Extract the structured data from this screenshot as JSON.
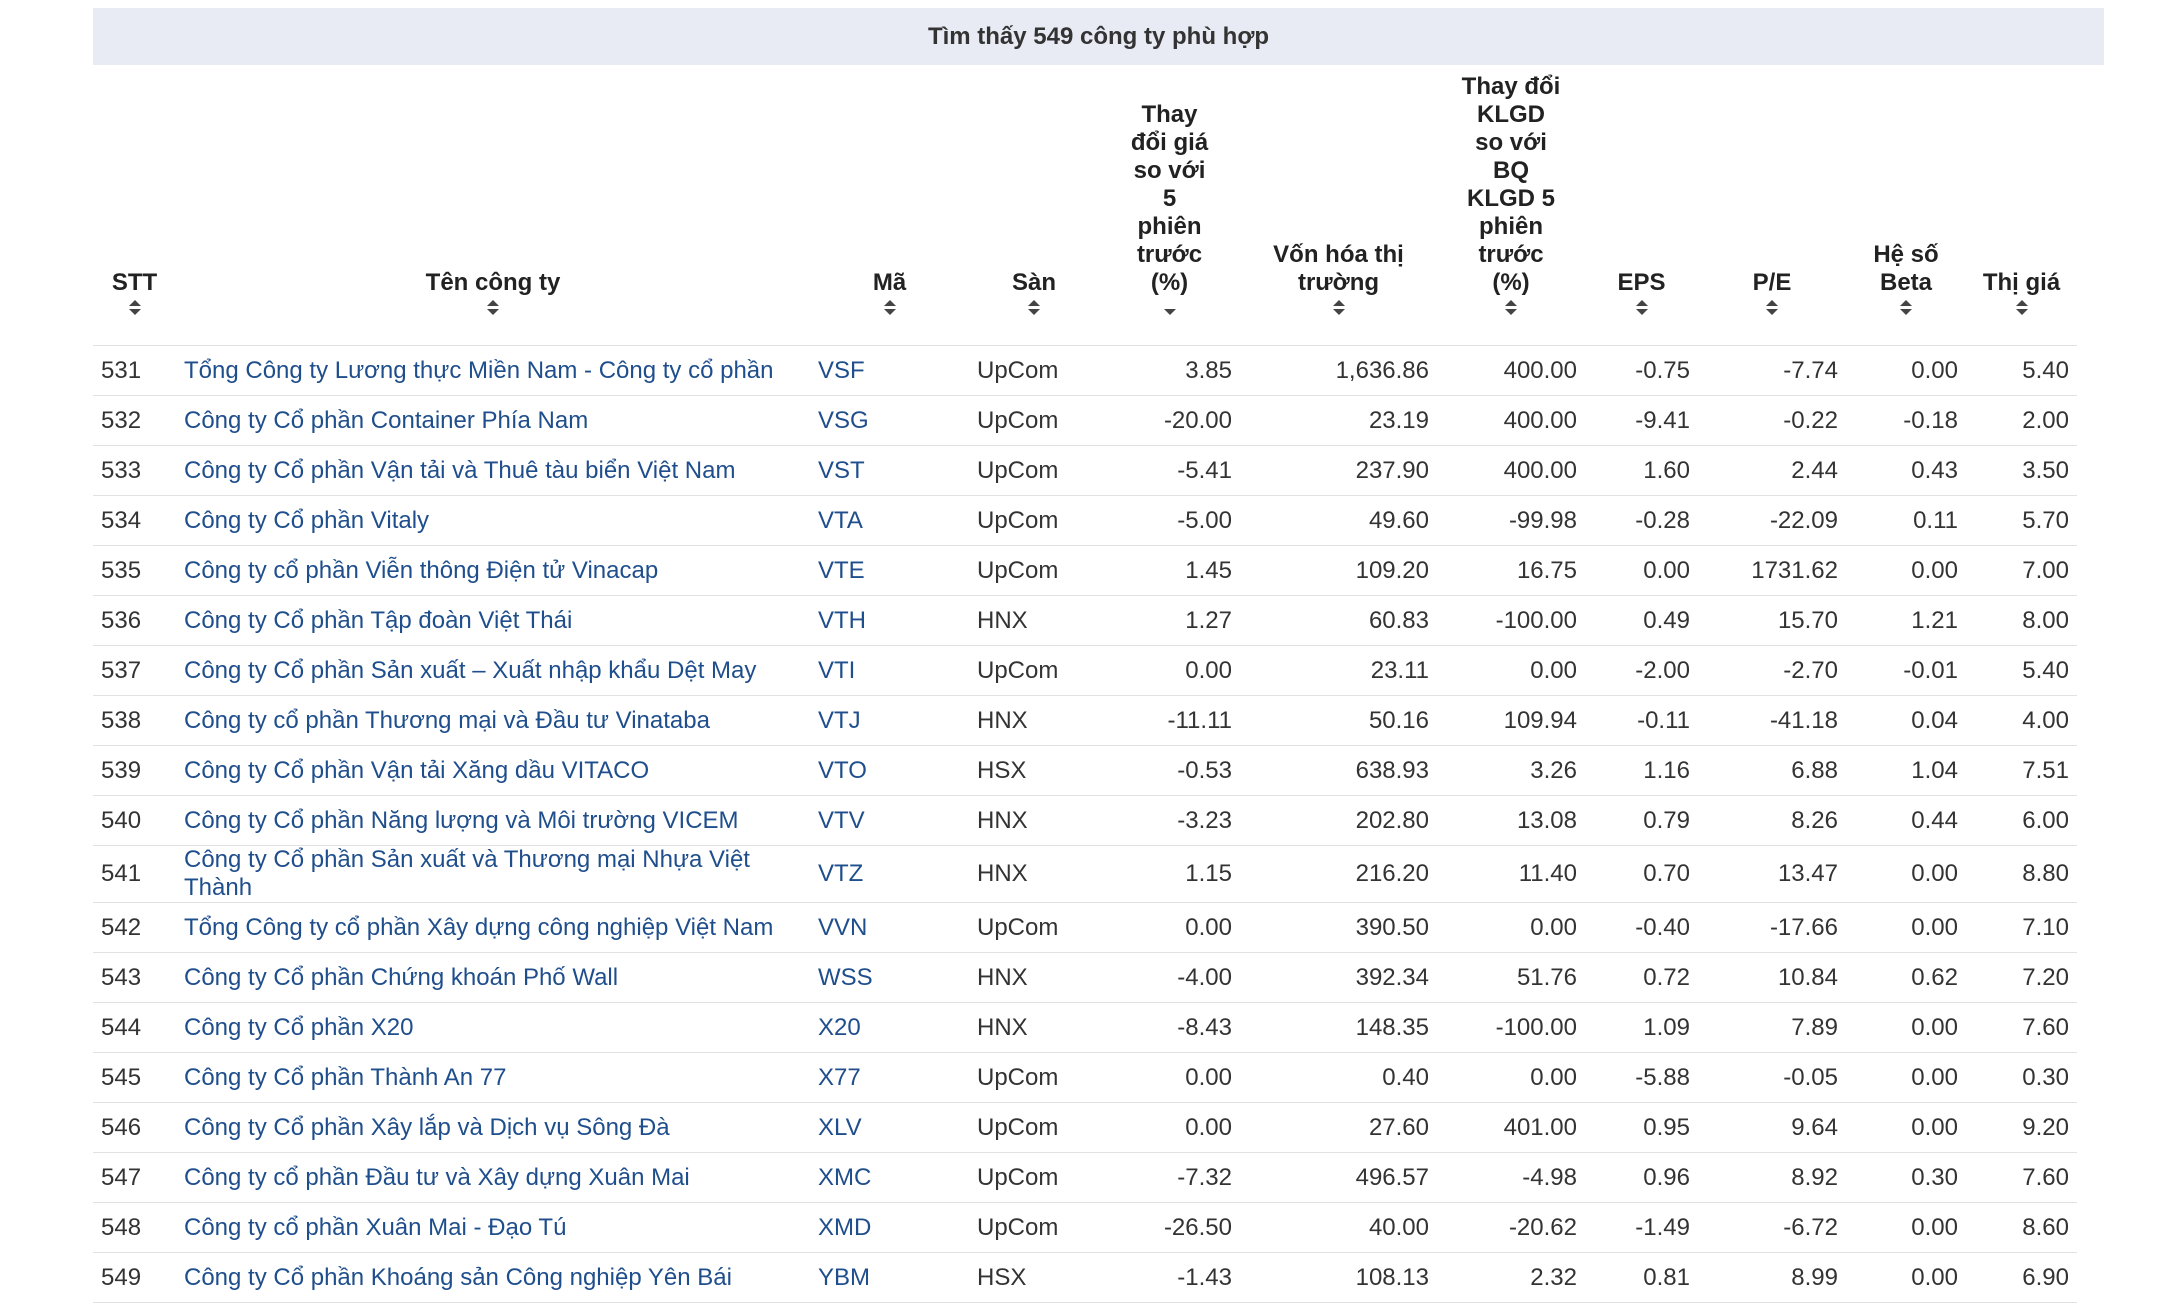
{
  "header": {
    "title": "Tìm thấy 549 công ty phù hợp"
  },
  "table": {
    "columns": [
      "STT",
      "Tên công ty",
      "Mã",
      "Sàn",
      "Thay đổi giá so với 5 phiên trước (%)",
      "Vốn hóa thị trường",
      "Thay đổi KLGD so với BQ KLGD 5 phiên trước (%)",
      "EPS",
      "P/E",
      "Hệ số Beta",
      "Thị giá"
    ],
    "rows": [
      [
        "531",
        "Tổng Công ty Lương thực Miền Nam - Công ty cổ phần",
        "VSF",
        "UpCom",
        "3.85",
        "1,636.86",
        "400.00",
        "-0.75",
        "-7.74",
        "0.00",
        "5.40"
      ],
      [
        "532",
        "Công ty Cổ phần Container Phía Nam",
        "VSG",
        "UpCom",
        "-20.00",
        "23.19",
        "400.00",
        "-9.41",
        "-0.22",
        "-0.18",
        "2.00"
      ],
      [
        "533",
        "Công ty Cổ phần Vận tải và Thuê tàu biển Việt Nam",
        "VST",
        "UpCom",
        "-5.41",
        "237.90",
        "400.00",
        "1.60",
        "2.44",
        "0.43",
        "3.50"
      ],
      [
        "534",
        "Công ty Cổ phần Vitaly",
        "VTA",
        "UpCom",
        "-5.00",
        "49.60",
        "-99.98",
        "-0.28",
        "-22.09",
        "0.11",
        "5.70"
      ],
      [
        "535",
        "Công ty cổ phần Viễn thông Điện tử Vinacap",
        "VTE",
        "UpCom",
        "1.45",
        "109.20",
        "16.75",
        "0.00",
        "1731.62",
        "0.00",
        "7.00"
      ],
      [
        "536",
        "Công ty Cổ phần Tập đoàn Việt Thái",
        "VTH",
        "HNX",
        "1.27",
        "60.83",
        "-100.00",
        "0.49",
        "15.70",
        "1.21",
        "8.00"
      ],
      [
        "537",
        "Công ty Cổ phần Sản xuất – Xuất nhập khẩu Dệt May",
        "VTI",
        "UpCom",
        "0.00",
        "23.11",
        "0.00",
        "-2.00",
        "-2.70",
        "-0.01",
        "5.40"
      ],
      [
        "538",
        "Công ty cổ phần Thương mại và Đầu tư Vinataba",
        "VTJ",
        "HNX",
        "-11.11",
        "50.16",
        "109.94",
        "-0.11",
        "-41.18",
        "0.04",
        "4.00"
      ],
      [
        "539",
        "Công ty Cổ phần Vận tải Xăng dầu VITACO",
        "VTO",
        "HSX",
        "-0.53",
        "638.93",
        "3.26",
        "1.16",
        "6.88",
        "1.04",
        "7.51"
      ],
      [
        "540",
        "Công ty Cổ phần Năng lượng và Môi trường VICEM",
        "VTV",
        "HNX",
        "-3.23",
        "202.80",
        "13.08",
        "0.79",
        "8.26",
        "0.44",
        "6.00"
      ],
      [
        "541",
        "Công ty Cổ phần Sản xuất và Thương mại Nhựa Việt Thành",
        "VTZ",
        "HNX",
        "1.15",
        "216.20",
        "11.40",
        "0.70",
        "13.47",
        "0.00",
        "8.80"
      ],
      [
        "542",
        "Tổng Công ty cổ phần Xây dựng công nghiệp Việt Nam",
        "VVN",
        "UpCom",
        "0.00",
        "390.50",
        "0.00",
        "-0.40",
        "-17.66",
        "0.00",
        "7.10"
      ],
      [
        "543",
        "Công ty Cổ phần Chứng khoán Phố Wall",
        "WSS",
        "HNX",
        "-4.00",
        "392.34",
        "51.76",
        "0.72",
        "10.84",
        "0.62",
        "7.20"
      ],
      [
        "544",
        "Công ty Cổ phần X20",
        "X20",
        "HNX",
        "-8.43",
        "148.35",
        "-100.00",
        "1.09",
        "7.89",
        "0.00",
        "7.60"
      ],
      [
        "545",
        "Công ty Cổ phần Thành An 77",
        "X77",
        "UpCom",
        "0.00",
        "0.40",
        "0.00",
        "-5.88",
        "-0.05",
        "0.00",
        "0.30"
      ],
      [
        "546",
        "Công ty Cổ phần Xây lắp và Dịch vụ Sông Đà",
        "XLV",
        "UpCom",
        "0.00",
        "27.60",
        "401.00",
        "0.95",
        "9.64",
        "0.00",
        "9.20"
      ],
      [
        "547",
        "Công ty cổ phần Đầu tư và Xây dựng Xuân Mai",
        "XMC",
        "UpCom",
        "-7.32",
        "496.57",
        "-4.98",
        "0.96",
        "8.92",
        "0.30",
        "7.60"
      ],
      [
        "548",
        "Công ty cổ phần Xuân Mai - Đạo Tú",
        "XMD",
        "UpCom",
        "-26.50",
        "40.00",
        "-20.62",
        "-1.49",
        "-6.72",
        "0.00",
        "8.60"
      ],
      [
        "549",
        "Công ty Cổ phần Khoáng sản Công nghiệp Yên Bái",
        "YBM",
        "HSX",
        "-1.43",
        "108.13",
        "2.32",
        "0.81",
        "8.99",
        "0.00",
        "6.90"
      ]
    ]
  }
}
